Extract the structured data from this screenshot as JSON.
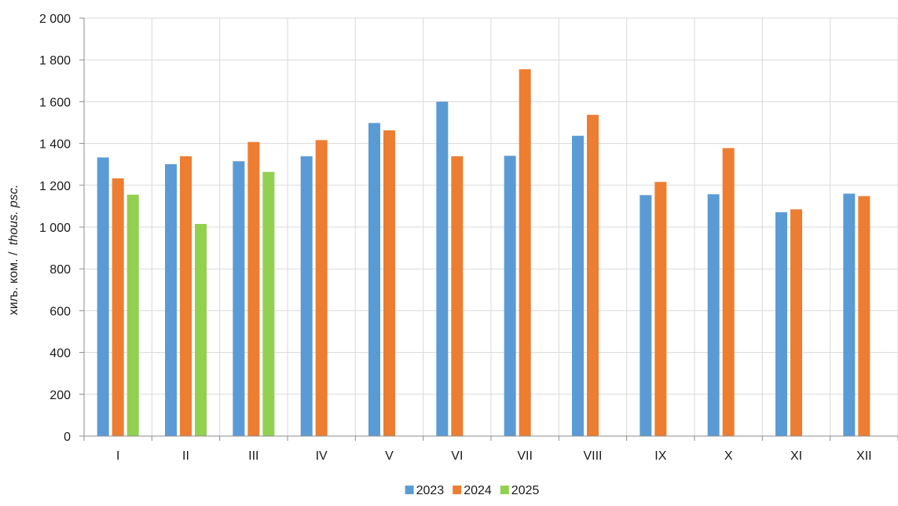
{
  "chart_data": {
    "type": "bar",
    "ylabel_plain": "хиљ. ком. /",
    "ylabel_italic": "thous. psc.",
    "ylim": [
      0,
      2000
    ],
    "yticks": [
      0,
      200,
      400,
      600,
      800,
      1000,
      1200,
      1400,
      1600,
      1800,
      2000
    ],
    "ytick_labels": [
      "0",
      "200",
      "400",
      "600",
      "800",
      "1 000",
      "1 200",
      "1 400",
      "1 600",
      "1 800",
      "2 000"
    ],
    "categories": [
      "I",
      "II",
      "III",
      "IV",
      "V",
      "VI",
      "VII",
      "VIII",
      "IX",
      "X",
      "XI",
      "XII"
    ],
    "grid": true,
    "legend_position": "bottom-center",
    "series": [
      {
        "name": "2023",
        "color": "#5b9bd5",
        "values": [
          1333,
          1301,
          1315,
          1339,
          1498,
          1600,
          1341,
          1437,
          1153,
          1157,
          1071,
          1160
        ]
      },
      {
        "name": "2024",
        "color": "#ed7d31",
        "values": [
          1233,
          1339,
          1407,
          1416,
          1463,
          1339,
          1755,
          1537,
          1216,
          1378,
          1085,
          1148
        ]
      },
      {
        "name": "2025",
        "color": "#92d050",
        "values": [
          1155,
          1015,
          1264,
          null,
          null,
          null,
          null,
          null,
          null,
          null,
          null,
          null
        ]
      }
    ]
  }
}
